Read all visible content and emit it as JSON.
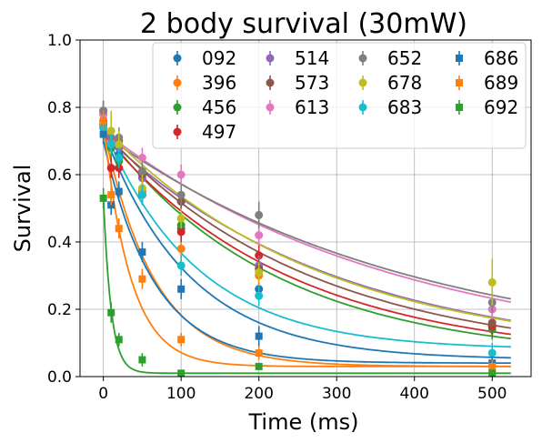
{
  "chart_data": {
    "type": "scatter",
    "title": "2 body survival (30mW)",
    "xlabel": "Time (ms)",
    "ylabel": "Survival",
    "xlim": [
      -30,
      550
    ],
    "ylim": [
      0,
      1.0
    ],
    "xticks": [
      0,
      100,
      200,
      300,
      400,
      500
    ],
    "xtick_labels": [
      "0",
      "100",
      "200",
      "300",
      "400",
      "500"
    ],
    "yticks": [
      0,
      0.2,
      0.4,
      0.6,
      0.8,
      1.0
    ],
    "ytick_labels": [
      "0.0",
      "0.2",
      "0.4",
      "0.6",
      "0.8",
      "1.0"
    ],
    "grid": true,
    "legend_position": "top-right",
    "fit_curves": "exponential decay fit per series",
    "x": [
      0,
      10,
      20,
      50,
      100,
      200,
      500
    ],
    "series": [
      {
        "name": "092",
        "color": "#1f77b4",
        "marker": "circle",
        "values": [
          0.76,
          0.7,
          0.66,
          0.55,
          0.44,
          0.26,
          0.15
        ],
        "err": [
          0.03,
          0.03,
          0.03,
          0.03,
          0.03,
          0.03,
          0.03
        ],
        "fit": {
          "a": 0.68,
          "tau": 110,
          "c": 0.05
        }
      },
      {
        "name": "396",
        "color": "#ff7f0e",
        "marker": "circle",
        "values": [
          0.78,
          0.69,
          0.65,
          0.55,
          0.38,
          0.3,
          0.15
        ],
        "err": [
          0.03,
          0.03,
          0.03,
          0.03,
          0.03,
          0.03,
          0.03
        ],
        "fit": {
          "a": 0.71,
          "tau": 65,
          "c": 0.03
        }
      },
      {
        "name": "456",
        "color": "#2ca02c",
        "marker": "circle",
        "values": [
          0.75,
          0.68,
          0.64,
          0.54,
          0.45,
          0.33,
          0.14
        ],
        "err": [
          0.03,
          0.03,
          0.03,
          0.03,
          0.03,
          0.03,
          0.03
        ],
        "fit": {
          "a": 0.68,
          "tau": 220,
          "c": 0.05
        }
      },
      {
        "name": "497",
        "color": "#d62728",
        "marker": "circle",
        "values": [
          0.74,
          0.62,
          0.62,
          0.54,
          0.43,
          0.36,
          0.15
        ],
        "err": [
          0.03,
          0.03,
          0.03,
          0.03,
          0.03,
          0.03,
          0.03
        ],
        "fit": {
          "a": 0.67,
          "tau": 240,
          "c": 0.05
        }
      },
      {
        "name": "514",
        "color": "#9467bd",
        "marker": "circle",
        "values": [
          0.78,
          0.7,
          0.68,
          0.59,
          0.52,
          0.33,
          0.2
        ],
        "err": [
          0.03,
          0.03,
          0.03,
          0.03,
          0.03,
          0.03,
          0.03
        ],
        "fit": {
          "a": 0.67,
          "tau": 300,
          "c": 0.05
        }
      },
      {
        "name": "573",
        "color": "#8c564b",
        "marker": "circle",
        "values": [
          0.79,
          0.69,
          0.7,
          0.6,
          0.52,
          0.32,
          0.16
        ],
        "err": [
          0.03,
          0.03,
          0.03,
          0.03,
          0.03,
          0.03,
          0.03
        ],
        "fit": {
          "a": 0.68,
          "tau": 265,
          "c": 0.05
        }
      },
      {
        "name": "613",
        "color": "#e377c2",
        "marker": "circle",
        "values": [
          0.78,
          0.7,
          0.69,
          0.65,
          0.6,
          0.42,
          0.2
        ],
        "err": [
          0.03,
          0.03,
          0.03,
          0.03,
          0.03,
          0.03,
          0.03
        ],
        "fit": {
          "a": 0.68,
          "tau": 380,
          "c": 0.05
        }
      },
      {
        "name": "652",
        "color": "#7f7f7f",
        "marker": "circle",
        "values": [
          0.79,
          0.71,
          0.71,
          0.61,
          0.54,
          0.48,
          0.22
        ],
        "err": [
          0.03,
          0.03,
          0.03,
          0.03,
          0.03,
          0.04,
          0.03
        ],
        "fit": {
          "a": 0.67,
          "tau": 400,
          "c": 0.05
        }
      },
      {
        "name": "678",
        "color": "#bcbd22",
        "marker": "circle",
        "values": [
          0.74,
          0.73,
          0.69,
          0.56,
          0.47,
          0.31,
          0.28
        ],
        "err": [
          0.04,
          0.06,
          0.04,
          0.04,
          0.03,
          0.03,
          0.07
        ],
        "fit": {
          "a": 0.68,
          "tau": 280,
          "c": 0.06
        }
      },
      {
        "name": "683",
        "color": "#17becf",
        "marker": "circle",
        "values": [
          0.74,
          0.69,
          0.65,
          0.54,
          0.33,
          0.24,
          0.07
        ],
        "err": [
          0.03,
          0.03,
          0.03,
          0.03,
          0.03,
          0.03,
          0.03
        ],
        "fit": {
          "a": 0.66,
          "tau": 120,
          "c": 0.08
        }
      },
      {
        "name": "686",
        "color": "#1f77b4",
        "marker": "square",
        "values": [
          0.72,
          0.51,
          0.55,
          0.37,
          0.26,
          0.12,
          0.04
        ],
        "err": [
          0.03,
          0.03,
          0.03,
          0.03,
          0.03,
          0.03,
          0.02
        ],
        "fit": {
          "a": 0.66,
          "tau": 65,
          "c": 0.04
        }
      },
      {
        "name": "689",
        "color": "#ff7f0e",
        "marker": "square",
        "values": [
          0.76,
          0.54,
          0.44,
          0.29,
          0.11,
          0.07,
          0.03
        ],
        "err": [
          0.03,
          0.03,
          0.03,
          0.03,
          0.02,
          0.02,
          0.02
        ],
        "fit": {
          "a": 0.72,
          "tau": 35,
          "c": 0.03
        }
      },
      {
        "name": "692",
        "color": "#2ca02c",
        "marker": "square",
        "values": [
          0.53,
          0.19,
          0.11,
          0.05,
          0.01,
          0.03,
          0.01
        ],
        "err": [
          0.03,
          0.03,
          0.02,
          0.02,
          0.01,
          0.01,
          0.01
        ],
        "fit": {
          "a": 0.52,
          "tau": 10,
          "c": 0.01
        }
      }
    ]
  }
}
